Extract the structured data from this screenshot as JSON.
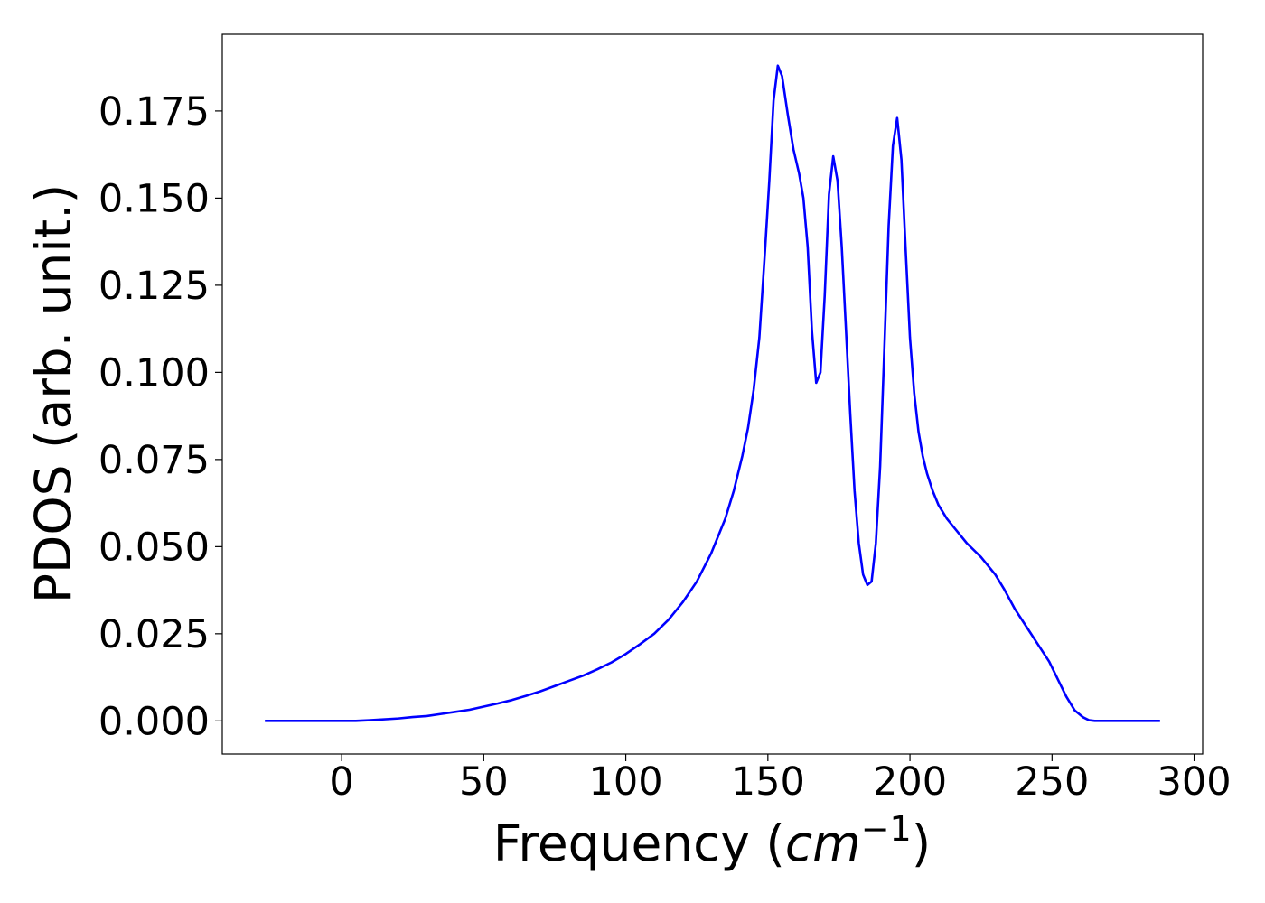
{
  "chart_data": {
    "type": "line",
    "title": "",
    "xlabel_prefix": "Frequency (",
    "xlabel_unit_base": "cm",
    "xlabel_unit_exp": "−1",
    "xlabel_suffix": ")",
    "ylabel": "PDOS (arb. unit.)",
    "xlim": [
      -42,
      303
    ],
    "ylim": [
      -0.0095,
      0.197
    ],
    "x_ticks": [
      0,
      50,
      100,
      150,
      200,
      250,
      300
    ],
    "x_tick_labels": [
      "0",
      "50",
      "100",
      "150",
      "200",
      "250",
      "300"
    ],
    "y_ticks": [
      0.0,
      0.025,
      0.05,
      0.075,
      0.1,
      0.125,
      0.15,
      0.175
    ],
    "y_tick_labels": [
      "0.000",
      "0.025",
      "0.050",
      "0.075",
      "0.100",
      "0.125",
      "0.150",
      "0.175"
    ],
    "grid": false,
    "legend": false,
    "series": [
      {
        "color": "#0000ff",
        "x": [
          -27,
          0,
          5,
          10,
          20,
          25,
          30,
          35,
          40,
          45,
          50,
          55,
          60,
          65,
          70,
          75,
          80,
          85,
          90,
          95,
          100,
          105,
          110,
          115,
          120,
          125,
          130,
          135,
          138,
          141,
          143,
          145,
          147,
          149,
          150.5,
          152,
          153.5,
          155,
          157,
          159,
          161,
          162.5,
          164,
          165.5,
          167,
          168.5,
          170,
          171.5,
          173,
          174.5,
          176,
          177.5,
          179,
          180.5,
          182,
          183.5,
          185,
          186.5,
          188,
          189.5,
          191,
          192.5,
          194,
          195.5,
          197,
          198.5,
          200,
          201.5,
          203,
          204.5,
          206,
          208,
          210,
          213,
          216,
          220,
          225,
          230,
          233,
          237,
          241,
          245,
          249,
          252,
          255,
          258,
          261,
          263,
          265,
          268,
          272,
          280,
          288
        ],
        "y": [
          0.0,
          0.0,
          0.0,
          0.0002,
          0.0007,
          0.0011,
          0.0014,
          0.002,
          0.0026,
          0.0032,
          0.0041,
          0.005,
          0.006,
          0.0072,
          0.0085,
          0.01,
          0.0115,
          0.013,
          0.0148,
          0.0168,
          0.0192,
          0.022,
          0.025,
          0.029,
          0.034,
          0.04,
          0.048,
          0.058,
          0.066,
          0.076,
          0.084,
          0.095,
          0.11,
          0.135,
          0.155,
          0.178,
          0.188,
          0.185,
          0.174,
          0.164,
          0.157,
          0.15,
          0.136,
          0.112,
          0.097,
          0.1,
          0.122,
          0.151,
          0.162,
          0.155,
          0.136,
          0.112,
          0.088,
          0.066,
          0.051,
          0.042,
          0.039,
          0.04,
          0.051,
          0.073,
          0.107,
          0.142,
          0.165,
          0.173,
          0.161,
          0.135,
          0.11,
          0.094,
          0.083,
          0.076,
          0.071,
          0.066,
          0.062,
          0.058,
          0.055,
          0.051,
          0.047,
          0.042,
          0.038,
          0.032,
          0.027,
          0.022,
          0.017,
          0.012,
          0.007,
          0.003,
          0.001,
          0.0002,
          0.0,
          0.0,
          0.0,
          0.0,
          0.0
        ]
      }
    ]
  }
}
